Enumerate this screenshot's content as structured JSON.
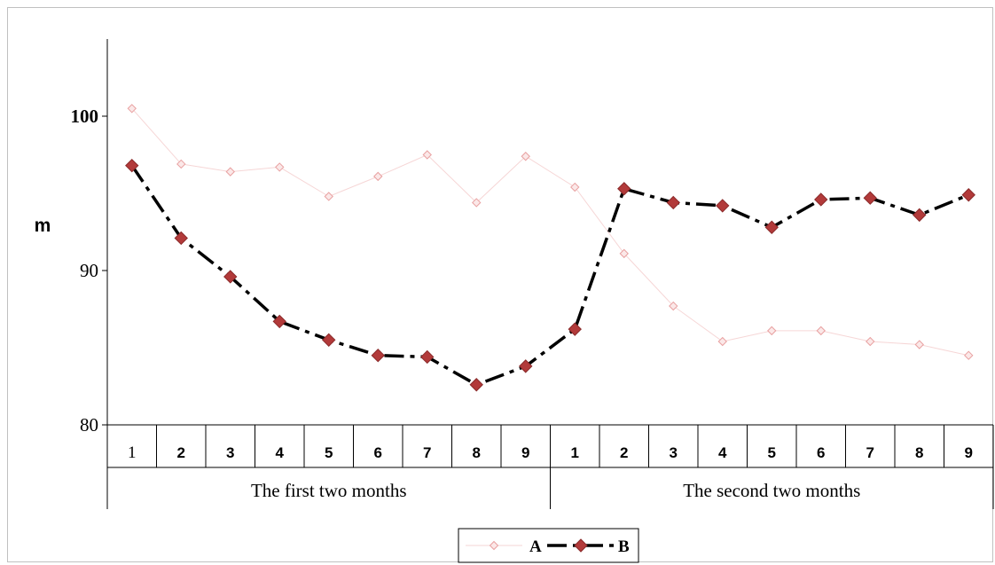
{
  "chart_data": {
    "type": "line",
    "ylabel": "m",
    "ylim": [
      80,
      105
    ],
    "yticks": [
      "80",
      "90",
      "100"
    ],
    "xlabel": "",
    "categories": [
      "1",
      "2",
      "3",
      "4",
      "5",
      "6",
      "7",
      "8",
      "9",
      "1",
      "2",
      "3",
      "4",
      "5",
      "6",
      "7",
      "8",
      "9"
    ],
    "groups": [
      {
        "label": "The first two months",
        "span": 9
      },
      {
        "label": "The second two months",
        "span": 9
      }
    ],
    "series": [
      {
        "name": "A",
        "color": "#f2bcbc",
        "line_style": "solid-thin",
        "values": [
          100.5,
          96.9,
          96.4,
          96.7,
          94.8,
          96.1,
          97.5,
          94.4,
          97.4,
          95.4,
          91.1,
          87.7,
          85.4,
          86.1,
          86.1,
          85.4,
          85.2,
          84.5
        ]
      },
      {
        "name": "B",
        "color": "#b23a3a",
        "line_style": "dash-dot-thick",
        "values": [
          96.8,
          92.1,
          89.6,
          86.7,
          85.5,
          84.5,
          84.4,
          82.6,
          83.8,
          86.2,
          95.3,
          94.4,
          94.2,
          92.8,
          94.6,
          94.7,
          93.6,
          94.9
        ]
      }
    ],
    "legend_position": "bottom-center",
    "grid": false
  }
}
